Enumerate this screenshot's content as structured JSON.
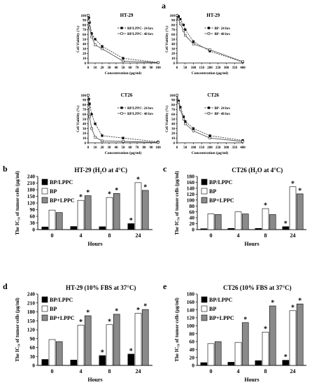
{
  "colors": {
    "black_bar": "#000000",
    "white_bar": "#ffffff",
    "gray_bar": "#8a8a8a",
    "dashed_line": "#333333",
    "solid_line": "#555555"
  },
  "chart_data": [
    {
      "id": "a1",
      "panel_letter": "a",
      "type": "line",
      "title": "HT-29",
      "xlabel": "Concentration (μg/ml)",
      "ylabel": "Cell Viability (%)",
      "xlim": [
        0,
        100
      ],
      "ylim": [
        0,
        100
      ],
      "xticks": [
        "0",
        "10",
        "20",
        "30",
        "40",
        "50",
        "60",
        "70",
        "80",
        "90",
        "100"
      ],
      "yticks": [
        "0",
        "10",
        "20",
        "30",
        "40",
        "50",
        "60",
        "70",
        "80",
        "90",
        "100"
      ],
      "legend_position": "top-right",
      "series": [
        {
          "name": "BP/LPPC- 24 hrs",
          "style": "dashed",
          "marker": "square",
          "x": [
            0,
            1,
            2,
            5,
            10,
            20,
            50,
            100
          ],
          "y": [
            100,
            95,
            85,
            62,
            50,
            35,
            10,
            1
          ]
        },
        {
          "name": "BP/LPPC- 48 hrs",
          "style": "solid",
          "marker": "open-square",
          "x": [
            0,
            1,
            2,
            5,
            10,
            20,
            50,
            100
          ],
          "y": [
            100,
            88,
            74,
            55,
            38,
            30,
            4,
            1
          ]
        }
      ]
    },
    {
      "id": "a2",
      "type": "line",
      "title": "HT-29",
      "xlabel": "Concentration (μg/ml)",
      "ylabel": "Cell Viability (%)",
      "xlim": [
        0,
        400
      ],
      "ylim": [
        0,
        100
      ],
      "xticks": [
        "0",
        "50",
        "100",
        "150",
        "200",
        "250",
        "300",
        "350",
        "400"
      ],
      "yticks": [
        "0",
        "10",
        "20",
        "30",
        "40",
        "50",
        "60",
        "70",
        "80",
        "90",
        "100"
      ],
      "legend_position": "top-right",
      "series": [
        {
          "name": "BP- 24 hrs",
          "style": "dashed",
          "marker": "square",
          "x": [
            0,
            10,
            20,
            40,
            50,
            100,
            200,
            400
          ],
          "y": [
            100,
            98,
            92,
            80,
            70,
            45,
            25,
            2
          ]
        },
        {
          "name": "BP- 48 hrs",
          "style": "solid",
          "marker": "open-square",
          "x": [
            0,
            10,
            20,
            40,
            50,
            100,
            200,
            400
          ],
          "y": [
            100,
            92,
            82,
            68,
            58,
            40,
            28,
            3
          ]
        }
      ]
    },
    {
      "id": "a3",
      "type": "line",
      "title": "CT26",
      "xlabel": "Concentration (μg/ml)",
      "ylabel": "Cell Viability (%)",
      "xlim": [
        0,
        100
      ],
      "ylim": [
        0,
        100
      ],
      "xticks": [
        "0",
        "10",
        "20",
        "30",
        "40",
        "50",
        "60",
        "70",
        "80",
        "90",
        "100"
      ],
      "yticks": [
        "0",
        "10",
        "20",
        "30",
        "40",
        "50",
        "60",
        "70",
        "80",
        "90",
        "100"
      ],
      "legend_position": "top-right",
      "series": [
        {
          "name": "BP/LPPC- 24 hrs",
          "style": "dashed",
          "marker": "square",
          "x": [
            0,
            1,
            2,
            5,
            10,
            20,
            50,
            100
          ],
          "y": [
            100,
            92,
            82,
            60,
            40,
            15,
            10,
            2
          ]
        },
        {
          "name": "BP/LPPC- 48 hrs",
          "style": "solid",
          "marker": "open-square",
          "x": [
            0,
            1,
            2,
            5,
            10,
            20,
            50,
            100
          ],
          "y": [
            100,
            75,
            55,
            30,
            12,
            4,
            3,
            1
          ]
        }
      ]
    },
    {
      "id": "a4",
      "type": "line",
      "title": "CT26",
      "xlabel": "Concentration (μg/ml)",
      "ylabel": "Cell Viability (%)",
      "xlim": [
        0,
        400
      ],
      "ylim": [
        0,
        100
      ],
      "xticks": [
        "0",
        "50",
        "100",
        "150",
        "200",
        "250",
        "300",
        "350",
        "400"
      ],
      "yticks": [
        "0",
        "10",
        "20",
        "30",
        "40",
        "50",
        "60",
        "70",
        "80",
        "90",
        "100"
      ],
      "legend_position": "top-right",
      "series": [
        {
          "name": "BP- 24 hrs",
          "style": "dashed",
          "marker": "square",
          "x": [
            0,
            10,
            20,
            40,
            50,
            100,
            200,
            400
          ],
          "y": [
            100,
            88,
            75,
            55,
            45,
            30,
            15,
            5
          ]
        },
        {
          "name": "BP- 48 hrs",
          "style": "solid",
          "marker": "open-square",
          "x": [
            0,
            10,
            20,
            40,
            50,
            100,
            200,
            400
          ],
          "y": [
            100,
            85,
            70,
            50,
            40,
            25,
            10,
            3
          ]
        }
      ]
    },
    {
      "id": "b",
      "panel_letter": "b",
      "type": "bar",
      "title": "HT-29 (H₂O at 4°C)",
      "xlabel": "Hours",
      "ylabel": "The IC₅₀ of tumor cells (μg/ml)",
      "categories": [
        "0",
        "4",
        "8",
        "24"
      ],
      "ylim": [
        0,
        240
      ],
      "yticks": [
        "0",
        "30",
        "60",
        "90",
        "120",
        "150",
        "180",
        "210",
        "240"
      ],
      "legend_position": "top-left",
      "series": [
        {
          "name": "BP/LPPC",
          "values": [
            12,
            14,
            13,
            27
          ],
          "significant": [
            false,
            false,
            false,
            true
          ]
        },
        {
          "name": "BP",
          "values": [
            88,
            132,
            145,
            212
          ],
          "significant": [
            false,
            true,
            true,
            true
          ]
        },
        {
          "name": "BP+LPPC",
          "values": [
            77,
            153,
            163,
            177
          ],
          "significant": [
            false,
            true,
            true,
            true
          ]
        }
      ],
      "significance_marker": "*"
    },
    {
      "id": "c",
      "panel_letter": "c",
      "type": "bar",
      "title": "CT26 (H₂O at 4°C)",
      "xlabel": "Hours",
      "ylabel": "The IC₅₀ of tumor cells (μg/ml)",
      "categories": [
        "0",
        "4",
        "8",
        "24"
      ],
      "ylim": [
        0,
        180
      ],
      "yticks": [
        "0",
        "20",
        "40",
        "60",
        "80",
        "100",
        "120",
        "140",
        "160",
        "180"
      ],
      "legend_position": "top-left",
      "series": [
        {
          "name": "BP/LPPC",
          "values": [
            3,
            4,
            4,
            10
          ],
          "significant": [
            false,
            false,
            false,
            true
          ]
        },
        {
          "name": "BP",
          "values": [
            53,
            60,
            71,
            145
          ],
          "significant": [
            false,
            false,
            true,
            true
          ]
        },
        {
          "name": "BP+LPPC",
          "values": [
            51,
            53,
            51,
            121
          ],
          "significant": [
            false,
            false,
            false,
            true
          ]
        }
      ],
      "significance_marker": "*"
    },
    {
      "id": "d",
      "panel_letter": "d",
      "type": "bar",
      "title": "HT-29 (10% FBS at 37°C)",
      "xlabel": "Hours",
      "ylabel": "The IC₅₀ of tumor cells (μg/ml)",
      "categories": [
        "0",
        "4",
        "8",
        "24"
      ],
      "ylim": [
        0,
        240
      ],
      "yticks": [
        "0",
        "30",
        "60",
        "90",
        "120",
        "150",
        "180",
        "210",
        "240"
      ],
      "legend_position": "top-left",
      "series": [
        {
          "name": "BP/LPPC",
          "values": [
            20,
            18,
            33,
            38
          ],
          "significant": [
            false,
            false,
            true,
            true
          ]
        },
        {
          "name": "BP",
          "values": [
            87,
            135,
            137,
            175
          ],
          "significant": [
            false,
            true,
            true,
            true
          ]
        },
        {
          "name": "BP+LPPC",
          "values": [
            80,
            167,
            172,
            188
          ],
          "significant": [
            false,
            true,
            true,
            true
          ]
        }
      ],
      "significance_marker": "*"
    },
    {
      "id": "e",
      "panel_letter": "e",
      "type": "bar",
      "title": "CT26 (10% FBS at 37°C)",
      "xlabel": "Hours",
      "ylabel": "The IC₅₀ of tumor cells (μg/ml)",
      "categories": [
        "0",
        "4",
        "8",
        "24"
      ],
      "ylim": [
        0,
        180
      ],
      "yticks": [
        "0",
        "20",
        "40",
        "60",
        "80",
        "100",
        "120",
        "140",
        "160",
        "180"
      ],
      "legend_position": "top-left",
      "series": [
        {
          "name": "BP/LPPC",
          "values": [
            7,
            8,
            12,
            13
          ],
          "significant": [
            false,
            false,
            false,
            true
          ]
        },
        {
          "name": "BP",
          "values": [
            55,
            58,
            84,
            138
          ],
          "significant": [
            false,
            false,
            true,
            true
          ]
        },
        {
          "name": "BP+LPPC",
          "values": [
            60,
            108,
            150,
            155
          ],
          "significant": [
            false,
            true,
            true,
            true
          ]
        }
      ],
      "significance_marker": "*"
    }
  ]
}
